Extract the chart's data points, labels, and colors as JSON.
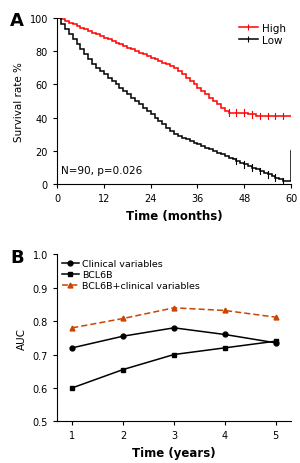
{
  "panel_A": {
    "label": "A",
    "high_t": [
      0,
      1,
      2,
      3,
      4,
      5,
      6,
      7,
      8,
      9,
      10,
      11,
      12,
      13,
      14,
      15,
      16,
      17,
      18,
      19,
      20,
      21,
      22,
      23,
      24,
      25,
      26,
      27,
      28,
      29,
      30,
      31,
      32,
      33,
      34,
      35,
      36,
      37,
      38,
      39,
      40,
      41,
      42,
      43,
      44,
      45,
      46,
      47,
      48,
      49,
      50,
      51,
      52,
      53,
      54,
      55,
      56,
      57,
      58,
      59,
      60
    ],
    "high_s": [
      100,
      99,
      98,
      97,
      96,
      95,
      94,
      93,
      92,
      91,
      90,
      89,
      88,
      87,
      86,
      85,
      84,
      83,
      82,
      81,
      80,
      79,
      78,
      77,
      76,
      75,
      74,
      73,
      72,
      71,
      70,
      68,
      66,
      64,
      62,
      60,
      58,
      56,
      54,
      52,
      50,
      48,
      46,
      44,
      43,
      43,
      43,
      43,
      43,
      42,
      42,
      41,
      41,
      41,
      41,
      41,
      41,
      41,
      41,
      41,
      41
    ],
    "low_t": [
      0,
      1,
      2,
      3,
      4,
      5,
      6,
      7,
      8,
      9,
      10,
      11,
      12,
      13,
      14,
      15,
      16,
      17,
      18,
      19,
      20,
      21,
      22,
      23,
      24,
      25,
      26,
      27,
      28,
      29,
      30,
      31,
      32,
      33,
      34,
      35,
      36,
      37,
      38,
      39,
      40,
      41,
      42,
      43,
      44,
      45,
      46,
      47,
      48,
      49,
      50,
      51,
      52,
      53,
      54,
      55,
      56,
      57,
      58,
      59,
      60
    ],
    "low_s": [
      100,
      96,
      93,
      90,
      87,
      84,
      81,
      78,
      75,
      72,
      70,
      68,
      66,
      64,
      62,
      60,
      58,
      56,
      54,
      52,
      50,
      48,
      46,
      44,
      42,
      40,
      38,
      36,
      34,
      32,
      30,
      29,
      28,
      27,
      26,
      25,
      24,
      23,
      22,
      21,
      20,
      19,
      18,
      17,
      16,
      15,
      14,
      13,
      12,
      11,
      10,
      9,
      8,
      7,
      6,
      5,
      4,
      3,
      2,
      2,
      20
    ],
    "high_censor_t": [
      44,
      46,
      48,
      50,
      52,
      54,
      56,
      58,
      60
    ],
    "low_censor_t": [
      46,
      48,
      50,
      52,
      54,
      56,
      58,
      60
    ],
    "xlabel": "Time (months)",
    "ylabel": "Survival rate %",
    "xlim": [
      0,
      60
    ],
    "ylim": [
      0,
      100
    ],
    "xticks": [
      0,
      12,
      24,
      36,
      48,
      60
    ],
    "yticks": [
      0,
      20,
      40,
      60,
      80,
      100
    ],
    "annotation": "N=90, p=0.026",
    "legend_high": "High",
    "legend_low": "Low",
    "high_color": "#ff0000",
    "low_color": "#000000"
  },
  "panel_B": {
    "label": "B",
    "time": [
      1,
      2,
      3,
      4,
      5
    ],
    "clinical": [
      0.72,
      0.755,
      0.78,
      0.76,
      0.735
    ],
    "bcl6b": [
      0.6,
      0.655,
      0.7,
      0.72,
      0.74
    ],
    "combined": [
      0.78,
      0.808,
      0.84,
      0.832,
      0.812
    ],
    "xlabel": "Time (years)",
    "ylabel": "AUC",
    "ylim": [
      0.5,
      1.0
    ],
    "xticks": [
      1,
      2,
      3,
      4,
      5
    ],
    "yticks": [
      0.5,
      0.6,
      0.7,
      0.8,
      0.9,
      1.0
    ],
    "legend_clinical": "Clinical variables",
    "legend_bcl6b": "BCL6B",
    "legend_combined": "BCL6B+clinical variables",
    "clinical_color": "#000000",
    "bcl6b_color": "#000000",
    "combined_color": "#cc4400"
  }
}
